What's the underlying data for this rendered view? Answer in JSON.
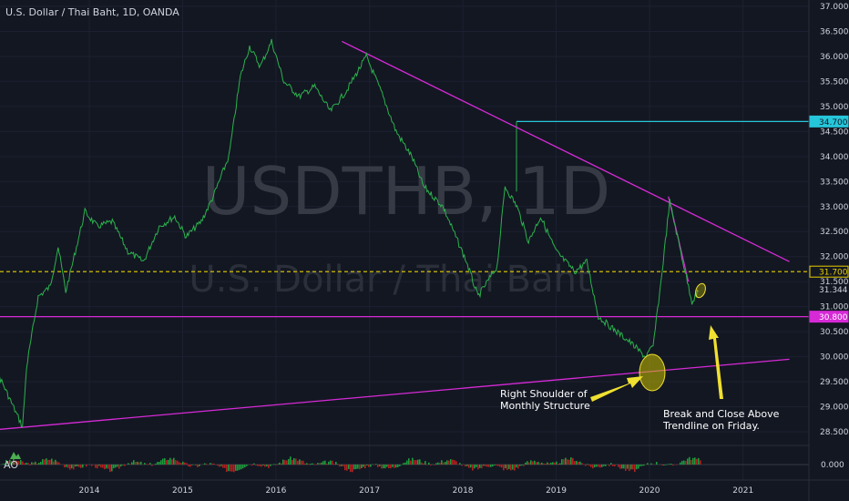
{
  "header": {
    "symbol_title": "U.S. Dollar / Thai Baht, 1D, OANDA"
  },
  "watermark": {
    "ticker": "USDTHB, 1D",
    "name": "U.S. Dollar / Thai Baht"
  },
  "indicator": {
    "label": "AO",
    "zero_label": "0.000"
  },
  "colors": {
    "background": "#131722",
    "price_line": "#2bb24c",
    "trendline": "#d62ad6",
    "resistance": "#26c6da",
    "dotted_level": "#e8d000",
    "annotation": "#f0e030",
    "ao_up": "#1e9b3c",
    "ao_down": "#b22222",
    "axis_text": "#d1d4dc"
  },
  "chart_data": {
    "type": "line",
    "title": "U.S. Dollar / Thai Baht, 1D, OANDA",
    "x_ticks": [
      "2014",
      "2015",
      "2016",
      "2017",
      "2018",
      "2019",
      "2020",
      "2021"
    ],
    "y_ticks": [
      "37.000",
      "36.500",
      "36.000",
      "35.500",
      "35.000",
      "34.500",
      "34.000",
      "33.500",
      "33.000",
      "32.500",
      "32.000",
      "31.500",
      "31.000",
      "30.500",
      "30.000",
      "29.500",
      "29.000",
      "28.500"
    ],
    "ylim": [
      28.2,
      37.05
    ],
    "series": [
      {
        "values_date": [
          "2012-10-01",
          "2013-01-15",
          "2013-04-15",
          "2013-05-01",
          "2013-06-15",
          "2013-08-01",
          "2013-09-01",
          "2013-10-01",
          "2013-12-15",
          "2014-02-01",
          "2014-04-01",
          "2014-06-01",
          "2014-08-01",
          "2014-10-01",
          "2014-12-01",
          "2015-01-15",
          "2015-03-15",
          "2015-05-01",
          "2015-07-01",
          "2015-08-15",
          "2015-09-20",
          "2015-11-01",
          "2015-12-15",
          "2016-02-01",
          "2016-04-01",
          "2016-06-01",
          "2016-08-01",
          "2016-10-01",
          "2016-12-20",
          "2017-02-15",
          "2017-04-15",
          "2017-06-15",
          "2017-08-01",
          "2017-10-15",
          "2018-01-15",
          "2018-03-01",
          "2018-05-15",
          "2018-06-15",
          "2018-08-01",
          "2018-09-15",
          "2018-11-01",
          "2019-01-01",
          "2019-03-15",
          "2019-05-01",
          "2019-06-15",
          "2019-08-01",
          "2019-10-15",
          "2019-12-15",
          "2020-01-15",
          "2020-02-15",
          "2020-03-20",
          "2020-04-15",
          "2020-05-15",
          "2020-06-15",
          "2020-07-10"
        ],
        "values": [
          29.9,
          29.6,
          28.6,
          29.8,
          31.2,
          31.4,
          32.2,
          31.3,
          32.9,
          32.6,
          32.7,
          32.1,
          31.9,
          32.6,
          32.8,
          32.4,
          32.7,
          33.2,
          34.0,
          35.6,
          36.2,
          35.8,
          36.3,
          35.5,
          35.2,
          35.4,
          34.9,
          35.3,
          36.0,
          35.3,
          34.5,
          34.0,
          33.4,
          33.0,
          31.9,
          31.2,
          31.8,
          33.4,
          33.0,
          32.3,
          32.8,
          32.1,
          31.7,
          31.9,
          30.8,
          30.6,
          30.3,
          30.0,
          30.2,
          31.5,
          33.1,
          32.5,
          31.8,
          31.1,
          31.3
        ]
      }
    ],
    "levels": [
      {
        "name": "resistance",
        "value": 34.7,
        "label": "34.700"
      },
      {
        "name": "dotted",
        "value": 31.7,
        "label": "31.700"
      },
      {
        "name": "last",
        "value": 31.344,
        "label": "31.344"
      },
      {
        "name": "support",
        "value": 30.8,
        "label": "30.800"
      }
    ],
    "trendlines": [
      {
        "name": "descending",
        "from": [
          "2016-09-15",
          36.3
        ],
        "to": [
          "2021-07-01",
          31.9
        ]
      },
      {
        "name": "ascending",
        "from": [
          "2012-10-01",
          28.5
        ],
        "to": [
          "2021-07-01",
          29.95
        ]
      },
      {
        "name": "break",
        "from": [
          "2020-03-15",
          33.2
        ],
        "to": [
          "2020-06-01",
          31.5
        ]
      }
    ],
    "annotations": [
      {
        "text_lines": [
          "Right Shoulder of",
          "Monthly Structure"
        ]
      },
      {
        "text_lines": [
          "Break and Close Above",
          "Trendline on Friday."
        ]
      }
    ]
  }
}
